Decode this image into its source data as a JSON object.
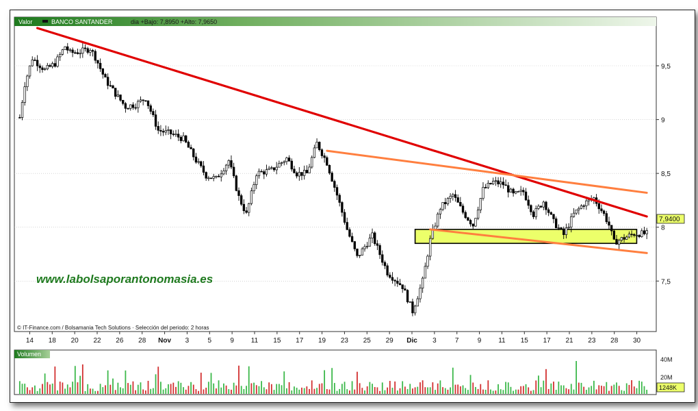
{
  "header": {
    "valor_label": "Valor",
    "stock_name": "BANCO SANTANDER",
    "range_text": "dia +Bajo: 7,8950 +Alto: 7,9650"
  },
  "watermark": "www.labolsaporantonomasia.es",
  "credits": "© IT-Finance.com / Bolsamania Tech Solutions · Selección del periodo: 2 horas",
  "last_price_label": "7,9400",
  "volume_panel": {
    "label": "Volumen",
    "axis_labels": [
      "40M",
      "20M"
    ],
    "last_volume_label": "1248K"
  },
  "colors": {
    "header_start": "#1e7a1e",
    "header_end": "#e9f4e6",
    "candle": "#000000",
    "main_trend": "#e00000",
    "channel": "#ff7f3f",
    "support_zone": "#ecff6a",
    "volume_up": "#3cb84a",
    "volume_down": "#d23030"
  },
  "chart_data": {
    "type": "candlestick",
    "y_ticks": [
      7.5,
      8,
      8.5,
      9,
      9.5
    ],
    "y_tick_labels": [
      "7,5",
      "8",
      "8,5",
      "9",
      "9,5"
    ],
    "ylim": [
      7.05,
      9.85
    ],
    "x_tick_labels": [
      "14",
      "18",
      "20",
      "22",
      "26",
      "28",
      "Nov",
      "3",
      "5",
      "9",
      "11",
      "15",
      "17",
      "19",
      "23",
      "25",
      "29",
      "Dic",
      "3",
      "7",
      "9",
      "11",
      "15",
      "17",
      "21",
      "23",
      "28",
      "30"
    ],
    "last_price": 7.94,
    "price_path": [
      [
        0,
        9.02
      ],
      [
        2,
        9.33
      ],
      [
        5,
        9.57
      ],
      [
        10,
        9.46
      ],
      [
        14,
        9.52
      ],
      [
        18,
        9.68
      ],
      [
        20,
        9.62
      ],
      [
        24,
        9.63
      ],
      [
        28,
        9.66
      ],
      [
        30,
        9.58
      ],
      [
        34,
        9.37
      ],
      [
        38,
        9.24
      ],
      [
        42,
        9.12
      ],
      [
        46,
        9.14
      ],
      [
        50,
        9.2
      ],
      [
        55,
        8.9
      ],
      [
        60,
        8.87
      ],
      [
        65,
        8.82
      ],
      [
        70,
        8.62
      ],
      [
        74,
        8.48
      ],
      [
        78,
        8.45
      ],
      [
        83,
        8.62
      ],
      [
        87,
        8.28
      ],
      [
        90,
        8.12
      ],
      [
        94,
        8.5
      ],
      [
        100,
        8.53
      ],
      [
        106,
        8.64
      ],
      [
        110,
        8.5
      ],
      [
        114,
        8.5
      ],
      [
        118,
        8.78
      ],
      [
        122,
        8.6
      ],
      [
        126,
        8.3
      ],
      [
        130,
        7.98
      ],
      [
        134,
        7.72
      ],
      [
        140,
        7.92
      ],
      [
        146,
        7.58
      ],
      [
        152,
        7.45
      ],
      [
        156,
        7.22
      ],
      [
        160,
        7.5
      ],
      [
        163,
        7.88
      ],
      [
        167,
        8.18
      ],
      [
        172,
        8.3
      ],
      [
        176,
        8.14
      ],
      [
        180,
        8.02
      ],
      [
        184,
        8.35
      ],
      [
        188,
        8.42
      ],
      [
        192,
        8.4
      ],
      [
        196,
        8.3
      ],
      [
        200,
        8.33
      ],
      [
        204,
        8.12
      ],
      [
        208,
        8.24
      ],
      [
        212,
        8.05
      ],
      [
        216,
        7.93
      ],
      [
        220,
        8.12
      ],
      [
        224,
        8.22
      ],
      [
        228,
        8.27
      ],
      [
        232,
        8.12
      ],
      [
        234,
        8.02
      ],
      [
        236,
        7.86
      ],
      [
        240,
        7.9
      ],
      [
        244,
        7.94
      ]
    ],
    "trendlines": [
      {
        "color": "#e00000",
        "points": [
          [
            7,
            9.85
          ],
          [
            249,
            8.1
          ]
        ]
      },
      {
        "color": "#ff7f3f",
        "points": [
          [
            122,
            8.71
          ],
          [
            249,
            8.32
          ]
        ]
      },
      {
        "color": "#ff7f3f",
        "points": [
          [
            163,
            7.98
          ],
          [
            249,
            7.76
          ]
        ]
      }
    ],
    "zones": [
      {
        "from_x": 157,
        "to_x": 245,
        "low": 7.85,
        "high": 7.98
      }
    ],
    "volume_axis_values": [
      40,
      20
    ]
  }
}
